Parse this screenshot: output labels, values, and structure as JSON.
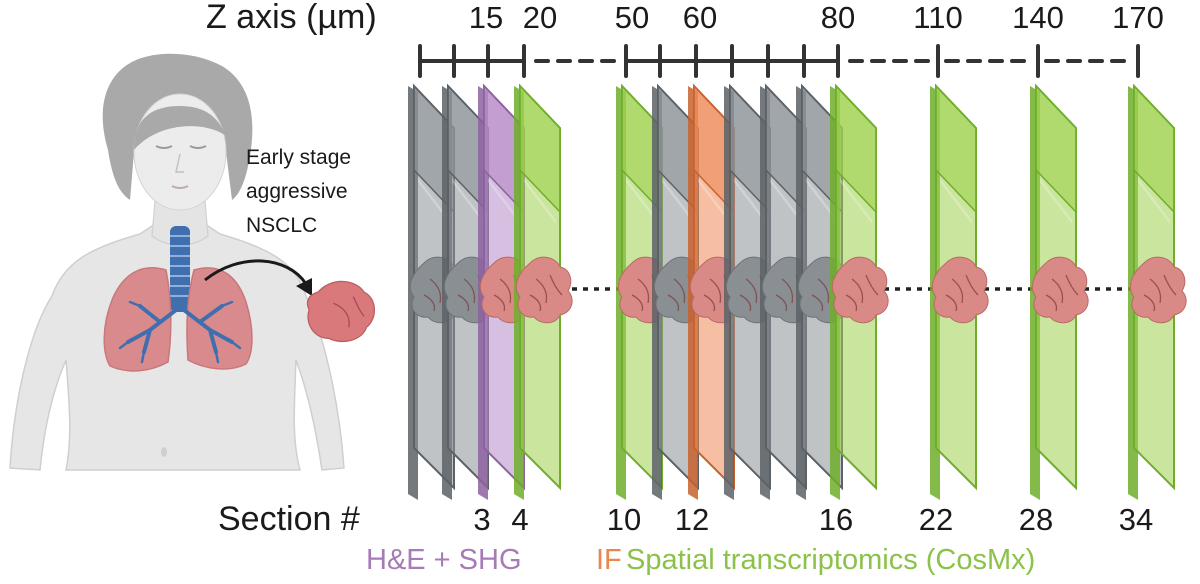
{
  "axis": {
    "title": "Z axis (µm)",
    "ticks": [
      {
        "label": "15"
      },
      {
        "label": "20"
      },
      {
        "label": "50"
      },
      {
        "label": "60"
      },
      {
        "label": "80"
      },
      {
        "label": "110"
      },
      {
        "label": "140"
      },
      {
        "label": "170"
      }
    ]
  },
  "sections": {
    "title": "Section #",
    "labels": [
      {
        "label": "3"
      },
      {
        "label": "4"
      },
      {
        "label": "10"
      },
      {
        "label": "12"
      },
      {
        "label": "16"
      },
      {
        "label": "22"
      },
      {
        "label": "28"
      },
      {
        "label": "34"
      }
    ]
  },
  "patient": {
    "line1": "Early stage",
    "line2": "aggressive",
    "line3": "NSCLC"
  },
  "legend": {
    "he_shg": "H&E + SHG",
    "if": "IF",
    "st": "Spatial transcriptomics (CosMx)"
  },
  "colors": {
    "gray_slide": "#8c9297",
    "purple_slide": "#b58bc6",
    "orange_slide": "#ee8a58",
    "green_slide": "#9fd04e",
    "tissue": "#d98a86",
    "he_text": "#a77bb7",
    "if_text": "#e8894b",
    "st_text": "#8cc24a"
  }
}
